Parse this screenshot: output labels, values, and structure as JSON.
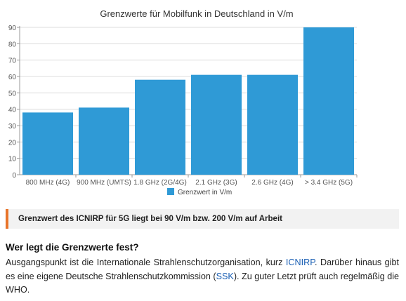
{
  "chart_data": {
    "type": "bar",
    "title": "Grenzwerte für Mobilfunk in Deutschland in V/m",
    "categories": [
      "800 MHz (4G)",
      "900 MHz (UMTS)",
      "1.8 GHz (2G/4G)",
      "2.1 GHz (3G)",
      "2.6 GHz (4G)",
      "> 3.4 GHz (5G)"
    ],
    "series": [
      {
        "name": "Grenzwert in V/m",
        "values": [
          38,
          41,
          58,
          61,
          61,
          90
        ]
      }
    ],
    "yticks": [
      0,
      10,
      20,
      30,
      40,
      50,
      60,
      70,
      80,
      90
    ],
    "ylim": [
      0,
      90
    ],
    "grid": true,
    "legend_position": "bottom",
    "bar_color": "#2f9ad6"
  },
  "callout": {
    "text": "Grenzwert des ICNIRP für 5G liegt bei 90 V/m bzw. 200 V/m auf Arbeit",
    "accent_color": "#e8742a"
  },
  "article": {
    "heading": "Wer legt die Grenzwerte fest?",
    "p_part1": "Ausgangspunkt ist die Internationale Strahlenschutzorganisation, kurz ",
    "link_icnirp": "ICNIRP",
    "p_part2": ". Darüber hinaus gibt es eine eigene Deutsche Strahlenschutzkommission (",
    "link_ssk": "SSK",
    "p_part3": "). Zu guter Letzt prüft auch regelmäßig die WHO."
  }
}
